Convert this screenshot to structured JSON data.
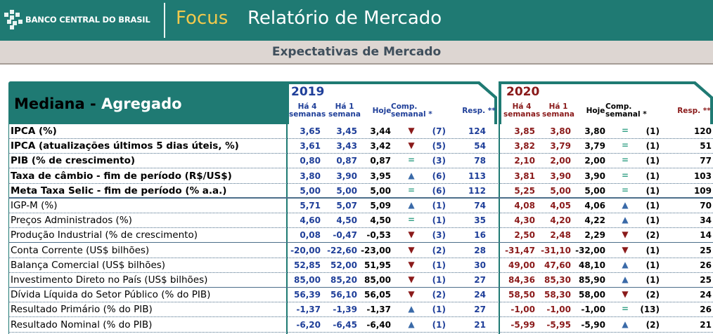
{
  "header": {
    "bank": "BANCO CENTRAL DO BRASIL",
    "focus": "Focus",
    "report": "Relatório de Mercado",
    "subtitle": "Expectativas de Mercado"
  },
  "table": {
    "title_part1": "Mediana - ",
    "title_part2": "Agregado",
    "years": [
      {
        "year": "2019",
        "color": "#1f3f99"
      },
      {
        "year": "2020",
        "color": "#8a1a1a"
      }
    ],
    "col_headers": {
      "ha4": "Há 4 semanas",
      "ha4_l1": "Há 4",
      "ha4_l2": "semanas",
      "ha1_l1": "Há 1",
      "ha1_l2": "semana",
      "hoje": "Hoje",
      "comp_l1": "Comp.",
      "comp_l2": "semanal *",
      "resp": "Resp. **"
    },
    "colors": {
      "header_green": "#1f7a73",
      "val2019": "#1f3f99",
      "val2020": "#8a1a1a",
      "arrow_up": "#3a6aa8",
      "arrow_down": "#8a1a1a",
      "equal": "#3aa38a"
    },
    "rows": [
      {
        "label": "IPCA (%)",
        "bold": true,
        "y2019": {
          "ha4": "3,65",
          "ha1": "3,45",
          "hoje": "3,44",
          "dir": "down",
          "comp": "(7)",
          "resp": "124"
        },
        "y2020": {
          "ha4": "3,85",
          "ha1": "3,80",
          "hoje": "3,80",
          "dir": "eq",
          "comp": "(1)",
          "resp": "120"
        }
      },
      {
        "label": "IPCA (atualizações últimos 5 dias úteis, %)",
        "bold": true,
        "y2019": {
          "ha4": "3,61",
          "ha1": "3,43",
          "hoje": "3,42",
          "dir": "down",
          "comp": "(5)",
          "resp": "54"
        },
        "y2020": {
          "ha4": "3,82",
          "ha1": "3,79",
          "hoje": "3,79",
          "dir": "eq",
          "comp": "(1)",
          "resp": "51"
        }
      },
      {
        "label": "PIB (% de crescimento)",
        "bold": true,
        "y2019": {
          "ha4": "0,80",
          "ha1": "0,87",
          "hoje": "0,87",
          "dir": "eq",
          "comp": "(3)",
          "resp": "78"
        },
        "y2020": {
          "ha4": "2,10",
          "ha1": "2,00",
          "hoje": "2,00",
          "dir": "eq",
          "comp": "(1)",
          "resp": "77"
        }
      },
      {
        "label": "Taxa de câmbio - fim de período (R$/US$)",
        "bold": true,
        "y2019": {
          "ha4": "3,80",
          "ha1": "3,90",
          "hoje": "3,95",
          "dir": "up",
          "comp": "(6)",
          "resp": "113"
        },
        "y2020": {
          "ha4": "3,81",
          "ha1": "3,90",
          "hoje": "3,90",
          "dir": "eq",
          "comp": "(1)",
          "resp": "103"
        }
      },
      {
        "label": "Meta Taxa Selic - fim de período (% a.a.)",
        "bold": true,
        "y2019": {
          "ha4": "5,00",
          "ha1": "5,00",
          "hoje": "5,00",
          "dir": "eq",
          "comp": "(6)",
          "resp": "112"
        },
        "y2020": {
          "ha4": "5,25",
          "ha1": "5,00",
          "hoje": "5,00",
          "dir": "eq",
          "comp": "(1)",
          "resp": "109"
        }
      },
      {
        "label": "IGP-M (%)",
        "bold": false,
        "y2019": {
          "ha4": "5,71",
          "ha1": "5,07",
          "hoje": "5,09",
          "dir": "up",
          "comp": "(1)",
          "resp": "74"
        },
        "y2020": {
          "ha4": "4,08",
          "ha1": "4,05",
          "hoje": "4,06",
          "dir": "up",
          "comp": "(1)",
          "resp": "70"
        }
      },
      {
        "label": "Preços Administrados (%)",
        "bold": false,
        "y2019": {
          "ha4": "4,60",
          "ha1": "4,50",
          "hoje": "4,50",
          "dir": "eq",
          "comp": "(1)",
          "resp": "35"
        },
        "y2020": {
          "ha4": "4,30",
          "ha1": "4,20",
          "hoje": "4,22",
          "dir": "up",
          "comp": "(1)",
          "resp": "34"
        }
      },
      {
        "label": "Produção Industrial (% de crescimento)",
        "bold": false,
        "y2019": {
          "ha4": "0,08",
          "ha1": "-0,47",
          "hoje": "-0,53",
          "dir": "down",
          "comp": "(3)",
          "resp": "16"
        },
        "y2020": {
          "ha4": "2,50",
          "ha1": "2,48",
          "hoje": "2,29",
          "dir": "down",
          "comp": "(2)",
          "resp": "14"
        }
      },
      {
        "label": "Conta Corrente (US$ bilhões)",
        "bold": false,
        "y2019": {
          "ha4": "-20,00",
          "ha1": "-22,60",
          "hoje": "-23,00",
          "dir": "down",
          "comp": "(2)",
          "resp": "28"
        },
        "y2020": {
          "ha4": "-31,47",
          "ha1": "-31,10",
          "hoje": "-32,00",
          "dir": "down",
          "comp": "(1)",
          "resp": "25"
        }
      },
      {
        "label": "Balança Comercial (US$ bilhões)",
        "bold": false,
        "y2019": {
          "ha4": "52,85",
          "ha1": "52,00",
          "hoje": "51,95",
          "dir": "down",
          "comp": "(1)",
          "resp": "30"
        },
        "y2020": {
          "ha4": "49,00",
          "ha1": "47,60",
          "hoje": "48,10",
          "dir": "up",
          "comp": "(1)",
          "resp": "26"
        }
      },
      {
        "label": "Investimento Direto no País (US$ bilhões)",
        "bold": false,
        "y2019": {
          "ha4": "85,00",
          "ha1": "85,20",
          "hoje": "85,00",
          "dir": "down",
          "comp": "(1)",
          "resp": "27"
        },
        "y2020": {
          "ha4": "84,36",
          "ha1": "85,30",
          "hoje": "85,90",
          "dir": "up",
          "comp": "(1)",
          "resp": "25"
        }
      },
      {
        "label": "Dívida Líquida do Setor Público (% do PIB)",
        "bold": false,
        "y2019": {
          "ha4": "56,39",
          "ha1": "56,10",
          "hoje": "56,05",
          "dir": "down",
          "comp": "(2)",
          "resp": "24"
        },
        "y2020": {
          "ha4": "58,50",
          "ha1": "58,30",
          "hoje": "58,00",
          "dir": "down",
          "comp": "(2)",
          "resp": "24"
        }
      },
      {
        "label": "Resultado Primário (% do PIB)",
        "bold": false,
        "y2019": {
          "ha4": "-1,37",
          "ha1": "-1,39",
          "hoje": "-1,37",
          "dir": "up",
          "comp": "(1)",
          "resp": "27"
        },
        "y2020": {
          "ha4": "-1,00",
          "ha1": "-1,00",
          "hoje": "-1,00",
          "dir": "eq",
          "comp": "(13)",
          "resp": "26"
        }
      },
      {
        "label": "Resultado Nominal (% do PIB)",
        "bold": false,
        "y2019": {
          "ha4": "-6,20",
          "ha1": "-6,45",
          "hoje": "-6,40",
          "dir": "up",
          "comp": "(1)",
          "resp": "21"
        },
        "y2020": {
          "ha4": "-5,99",
          "ha1": "-5,95",
          "hoje": "-5,90",
          "dir": "up",
          "comp": "(2)",
          "resp": "21"
        }
      }
    ]
  }
}
